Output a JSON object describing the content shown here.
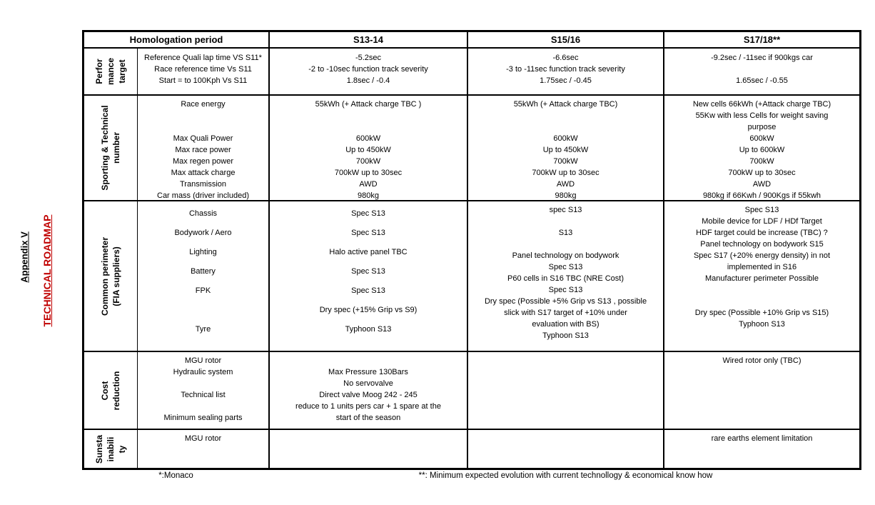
{
  "page": {
    "appendix_label": "Appendix V",
    "title": "TECHNICAL ROADMAP",
    "title_color": "#c00000",
    "footnote_left": "*:Monaco",
    "footnote_right": "**: Minimum expected evolution  with current technollogy  & economical know how"
  },
  "table": {
    "header": {
      "col0": "Homologation period",
      "col1": "S13-14",
      "col2": "S15/16",
      "col3": "S17/18**"
    },
    "sections": [
      {
        "id": "performance-target",
        "group_lines": [
          "Perfor",
          "mance",
          "target"
        ],
        "rows": [
          "Reference Quali lap time VS S11*",
          "Race reference time Vs S11",
          "Start = to 100Kph Vs S11"
        ],
        "s13": [
          "-5.2sec",
          "-2 to -10sec function track severity",
          "1.8sec / -0.4"
        ],
        "s15": [
          "-6.6sec",
          "-3 to -11sec function track severity",
          "1.75sec / -0.45"
        ],
        "s17": [
          "-9.2sec / -11sec if 900kgs car",
          "",
          "1.65sec / -0.55"
        ]
      },
      {
        "id": "sporting-technical-number",
        "group_lines": [
          "Sporting & Technical",
          "number"
        ],
        "rows": [
          "Race energy",
          "",
          "",
          "Max Quali Power",
          "Max race power",
          "Max regen power",
          "Max attack charge",
          "Transmission",
          "Car mass (driver included)"
        ],
        "s13": [
          "55kWh (+ Attack charge TBC )",
          "",
          "",
          "600kW",
          "Up to 450kW",
          "700kW",
          "700kW up to 30sec",
          "AWD",
          "980kg"
        ],
        "s15": [
          "55kWh (+ Attack charge TBC)",
          "",
          "",
          "600kW",
          "Up to 450kW",
          "700kW",
          "700kW up to 30sec",
          "AWD",
          "980kg"
        ],
        "s17": [
          "New cells 66kWh (+Attack charge TBC)",
          "55Kw with less Cells for weight saving",
          "purpose",
          "600kW",
          "Up to 600kW",
          "700kW",
          "700kW up to 30sec",
          "AWD",
          "980kg if 66Kwh / 900Kgs if 55kwh"
        ]
      },
      {
        "id": "common-perimeter",
        "group_lines": [
          "Common perimeter",
          "(FIA suppliers)"
        ],
        "rows": [
          "Chassis",
          "Bodywork / Aero",
          "Lighting",
          "Battery",
          "FPK",
          "",
          "Tyre"
        ],
        "s13": [
          "Spec S13",
          "Spec S13",
          "Halo active panel TBC",
          "Spec S13",
          "Spec S13",
          "Dry spec (+15% Grip vs S9)",
          "Typhoon S13"
        ],
        "s15": [
          "spec S13",
          "",
          "S13",
          "",
          "Panel technology on bodywork",
          "Spec S13",
          "P60 cells in S16 TBC (NRE Cost)",
          "Spec S13",
          "Dry spec (Possible +5% Grip vs S13 , possible",
          "slick with S17 target of +10%  under",
          "evaluation with BS)",
          "Typhoon S13"
        ],
        "s17": [
          "Spec S13",
          "Mobile device for LDF / HDf Target",
          "HDF target could be increase (TBC) ?",
          "Panel technology on bodywork S15",
          "Spec S17 (+20% energy density) in not",
          "implemented in S16",
          "Manufacturer perimeter Possible",
          "",
          "",
          "Dry spec (Possible +10% Grip vs S15)",
          "Typhoon S13"
        ]
      },
      {
        "id": "cost-reduction",
        "group_lines": [
          "Cost",
          "reduction"
        ],
        "rows": [
          "MGU rotor",
          "Hydraulic system",
          "",
          "Technical list",
          "",
          "Minimum sealing parts"
        ],
        "s13": [
          "",
          "Max Pressure 130Bars",
          "No servovalve",
          "Direct valve Moog 242 - 245",
          "reduce to 1 units pers car + 1 spare at the",
          "start of the season"
        ],
        "s15": [],
        "s17": [
          "Wired rotor only (TBC)"
        ]
      },
      {
        "id": "sustainability",
        "group_lines": [
          "Sunsta",
          "inabili",
          "ty"
        ],
        "rows": [
          "MGU rotor"
        ],
        "s13": [],
        "s15": [],
        "s17": [
          "rare earths element limitation"
        ]
      }
    ]
  }
}
